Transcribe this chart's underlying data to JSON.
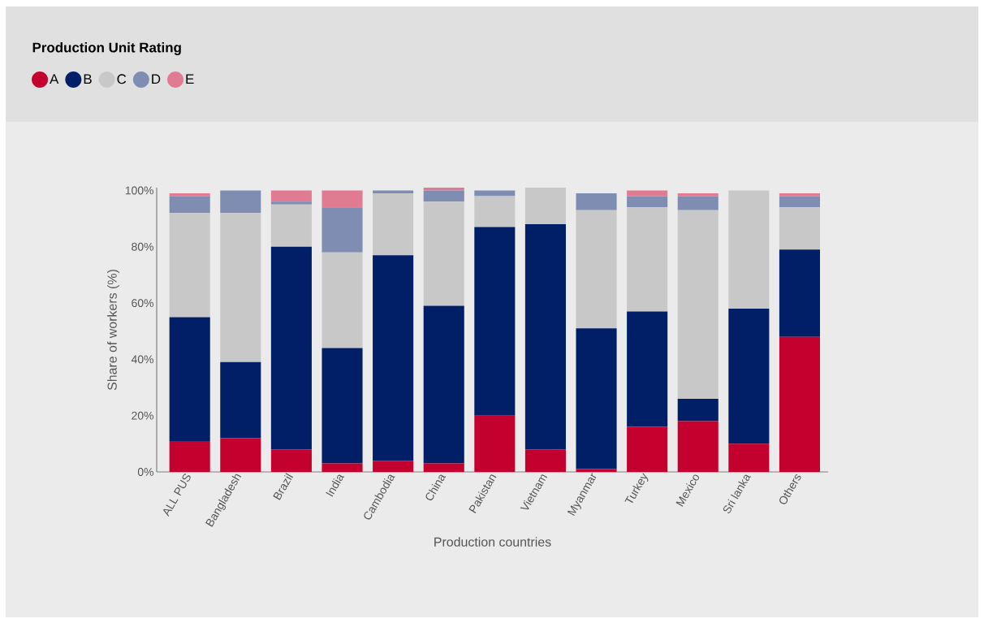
{
  "chart_data": {
    "type": "bar",
    "stacked": true,
    "legend_title": "Production Unit Rating",
    "legend": "top left",
    "xlabel": "Production countries",
    "ylabel": "Share of workers (%)",
    "categories": [
      "ALL PUS",
      "Bangladesh",
      "Brazil",
      "India",
      "Cambodia",
      "China",
      "Pakistan",
      "Vietnam",
      "Myanmar",
      "Turkey",
      "Mexico",
      "Sri lanka",
      "Others"
    ],
    "ylim": [
      0,
      101
    ],
    "yticks": [
      {
        "value": 0,
        "label": "0%"
      },
      {
        "value": 20,
        "label": "20%"
      },
      {
        "value": 40,
        "label": "40%"
      },
      {
        "value": 60,
        "label": "60%"
      },
      {
        "value": 80,
        "label": "80%"
      },
      {
        "value": 100,
        "label": "100%"
      }
    ],
    "series": [
      {
        "name": "A",
        "color": "#c4002f",
        "values": [
          11,
          12,
          8,
          3,
          4,
          3,
          20,
          8,
          1,
          16,
          18,
          10,
          48
        ]
      },
      {
        "name": "B",
        "color": "#001f66",
        "values": [
          44,
          27,
          72,
          41,
          73,
          56,
          67,
          80,
          50,
          41,
          8,
          48,
          31
        ]
      },
      {
        "name": "C",
        "color": "#c8c8c8",
        "values": [
          37,
          53,
          15,
          34,
          22,
          37,
          11,
          13,
          42,
          37,
          67,
          42,
          15
        ]
      },
      {
        "name": "D",
        "color": "#7f8db3",
        "values": [
          6,
          8,
          1,
          16,
          1,
          4,
          2,
          null,
          6,
          4,
          5,
          null,
          4
        ]
      },
      {
        "name": "E",
        "color": "#e07b91",
        "values": [
          1,
          null,
          4,
          6,
          null,
          1,
          null,
          null,
          null,
          2,
          1,
          null,
          1
        ]
      }
    ]
  }
}
